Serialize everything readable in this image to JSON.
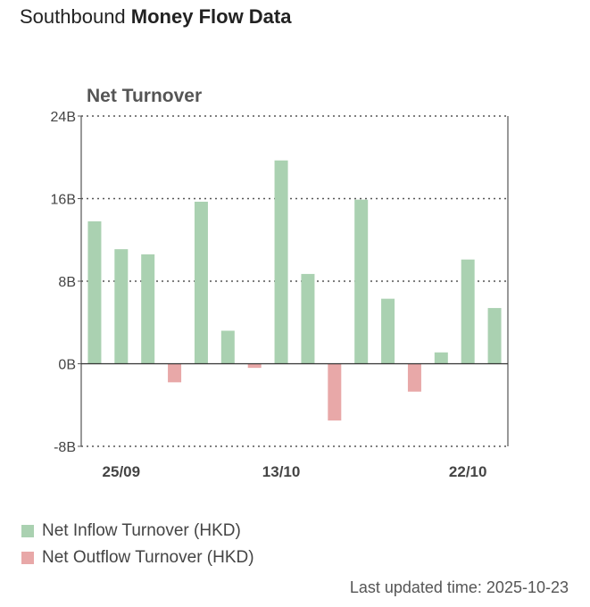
{
  "header": {
    "title_regular": "Southbound",
    "title_bold": "Money Flow Data"
  },
  "chart_data": {
    "type": "bar",
    "title": "Net Turnover",
    "y_unit_suffix": "B",
    "ylim": [
      -8,
      24
    ],
    "yticks": [
      -8,
      0,
      8,
      16,
      24
    ],
    "ytick_labels": [
      "-8B",
      "0B",
      "8B",
      "16B",
      "24B"
    ],
    "xtick_labels": [
      {
        "label": "25/09",
        "index": 1
      },
      {
        "label": "13/10",
        "index": 7
      },
      {
        "label": "22/10",
        "index": 14
      }
    ],
    "values": [
      13.8,
      11.1,
      10.6,
      -1.8,
      15.7,
      3.2,
      -0.4,
      19.7,
      8.7,
      -5.5,
      15.9,
      6.3,
      -2.7,
      1.1,
      10.1,
      5.4
    ],
    "colors": {
      "inflow": "#aad1b1",
      "outflow": "#e8a8a8"
    },
    "grid": "dotted",
    "legend": [
      {
        "label": "Net Inflow Turnover (HKD)",
        "color": "#aad1b1"
      },
      {
        "label": "Net Outflow Turnover (HKD)",
        "color": "#e8a8a8"
      }
    ]
  },
  "footer": {
    "updated_label": "Last updated time: 2025-10-23"
  }
}
